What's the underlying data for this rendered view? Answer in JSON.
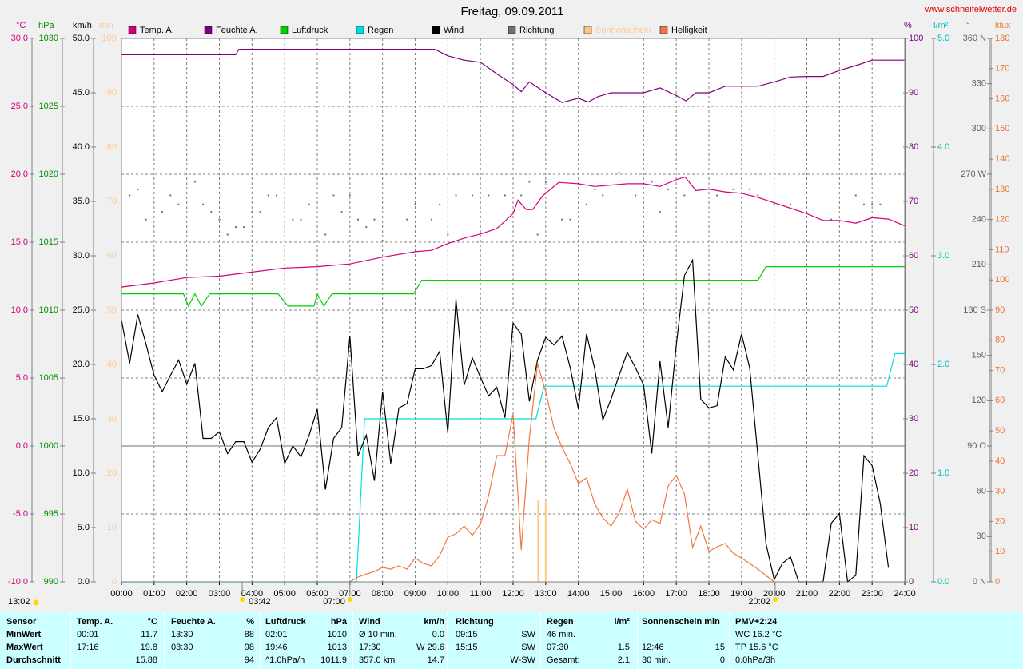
{
  "chart_data": {
    "type": "multi-axis-line",
    "title": "Freitag, 09.09.2011",
    "source": "www.schneifelwetter.de",
    "grid": true,
    "xlim": [
      0,
      24
    ],
    "xticks": [
      {
        "value": 0,
        "label": "00:00"
      },
      {
        "value": 1,
        "label": "01:00"
      },
      {
        "value": 2,
        "label": "02:00"
      },
      {
        "value": 3,
        "label": "03:00"
      },
      {
        "value": 4,
        "label": "04:00"
      },
      {
        "value": 5,
        "label": "05:00"
      },
      {
        "value": 6,
        "label": "06:00"
      },
      {
        "value": 7,
        "label": "07:00"
      },
      {
        "value": 8,
        "label": "08:00"
      },
      {
        "value": 9,
        "label": "09:00"
      },
      {
        "value": 10,
        "label": "10:00"
      },
      {
        "value": 11,
        "label": "11:00"
      },
      {
        "value": 12,
        "label": "12:00"
      },
      {
        "value": 13,
        "label": "13:00"
      },
      {
        "value": 14,
        "label": "14:00"
      },
      {
        "value": 15,
        "label": "15:00"
      },
      {
        "value": 16,
        "label": "16:00"
      },
      {
        "value": 17,
        "label": "17:00"
      },
      {
        "value": 18,
        "label": "18:00"
      },
      {
        "value": 19,
        "label": "19:00"
      },
      {
        "value": 20,
        "label": "20:00"
      },
      {
        "value": 21,
        "label": "21:00"
      },
      {
        "value": 22,
        "label": "22:00"
      },
      {
        "value": 23,
        "label": "23:00"
      },
      {
        "value": 24,
        "label": "24:00"
      }
    ],
    "corner_label": "13:02",
    "annotations": [
      {
        "x": 3.7,
        "label": "03:42",
        "kind": "moon"
      },
      {
        "x": 7.0,
        "label": "07:00",
        "kind": "sun"
      },
      {
        "x": 20.03,
        "label": "20:02",
        "kind": "sun"
      }
    ],
    "series": [
      {
        "name": "Temp. A.",
        "unit": "°C",
        "mark": "line",
        "color": "#d4007a",
        "axis_color": "#d0007f",
        "ylim": [
          -10,
          30
        ],
        "yticks": [
          {
            "value": 30,
            "label": "30.0"
          },
          {
            "value": 25,
            "label": "25.0"
          },
          {
            "value": 20,
            "label": "20.0"
          },
          {
            "value": 15,
            "label": "15.0"
          },
          {
            "value": 10,
            "label": "10.0"
          },
          {
            "value": 5,
            "label": "5.0"
          },
          {
            "value": 0,
            "label": "0.0"
          },
          {
            "value": -5,
            "label": "-5.0"
          },
          {
            "value": -10,
            "label": "-10.0"
          }
        ],
        "x": [
          0,
          1,
          2,
          3,
          4,
          5,
          6,
          7,
          8,
          9,
          9.5,
          10,
          10.5,
          11,
          11.5,
          12,
          12.15,
          12.4,
          12.6,
          12.9,
          13.1,
          13.4,
          14,
          14.5,
          15,
          15.5,
          16,
          16.5,
          17,
          17.27,
          17.6,
          18,
          18.5,
          19,
          19.5,
          20,
          20.5,
          21,
          21.5,
          22,
          22.5,
          23,
          23.5,
          24
        ],
        "values": [
          11.7,
          12.0,
          12.4,
          12.5,
          12.8,
          13.1,
          13.2,
          13.4,
          13.9,
          14.3,
          14.4,
          14.9,
          15.3,
          15.6,
          16.0,
          17.1,
          18.1,
          17.4,
          17.4,
          18.4,
          18.8,
          19.4,
          19.3,
          19.1,
          19.2,
          19.3,
          19.3,
          19.1,
          19.6,
          19.8,
          18.8,
          18.9,
          18.7,
          18.6,
          18.3,
          17.9,
          17.5,
          17.1,
          16.6,
          16.6,
          16.4,
          16.8,
          16.7,
          16.2
        ]
      },
      {
        "name": "Feuchte A.",
        "unit": "%",
        "mark": "line",
        "color": "#800080",
        "axis_color": "#800080",
        "ylim": [
          0,
          100
        ],
        "yticks": [
          100,
          90,
          80,
          70,
          60,
          50,
          40,
          30,
          20,
          10,
          0
        ],
        "x": [
          0,
          3.5,
          3.6,
          9.6,
          10,
          10.5,
          11,
          11.5,
          12,
          12.25,
          12.5,
          13,
          13.5,
          14,
          14.3,
          14.6,
          15,
          16,
          16.5,
          17,
          17.3,
          17.6,
          18,
          18.5,
          19,
          19.5,
          20,
          20.5,
          21,
          21.5,
          22,
          22.5,
          23,
          24
        ],
        "values": [
          97,
          97,
          98,
          98,
          96.8,
          96,
          95.6,
          93.5,
          91.5,
          90.2,
          92,
          90,
          88.2,
          89,
          88.3,
          89.3,
          90,
          90,
          90.9,
          89.5,
          88.5,
          90,
          90,
          91.2,
          91.2,
          91.2,
          92,
          92.9,
          93,
          93,
          94.1,
          95,
          96,
          96
        ]
      },
      {
        "name": "Luftdruck",
        "unit": "hPa",
        "mark": "line",
        "color": "#00d000",
        "axis_color": "#009000",
        "ylim": [
          990,
          1030
        ],
        "yticks": [
          1030,
          1025,
          1020,
          1015,
          1010,
          1005,
          1000,
          995,
          990
        ],
        "x": [
          0,
          1.9,
          2.05,
          2.25,
          2.45,
          2.7,
          4.8,
          5.1,
          5.9,
          6.0,
          6.2,
          6.45,
          8.95,
          9.2,
          19.5,
          19.75,
          24
        ],
        "values": [
          1011.2,
          1011.2,
          1010.3,
          1011.2,
          1010.3,
          1011.2,
          1011.2,
          1010.3,
          1010.3,
          1011.2,
          1010.3,
          1011.2,
          1011.2,
          1012.2,
          1012.2,
          1013.2,
          1013.2
        ]
      },
      {
        "name": "Regen",
        "unit": "l/m²",
        "mark": "line",
        "color": "#00e0e0",
        "axis_color": "#00c0c0",
        "ylim": [
          0,
          5
        ],
        "yticks": [
          {
            "value": 5,
            "label": "5.0"
          },
          {
            "value": 4,
            "label": "4.0"
          },
          {
            "value": 3,
            "label": "3.0"
          },
          {
            "value": 2,
            "label": "2.0"
          },
          {
            "value": 1,
            "label": "1.0"
          },
          {
            "value": 0,
            "label": "0.0"
          }
        ],
        "x": [
          0,
          7.2,
          7.45,
          12.7,
          12.95,
          23.45,
          23.7,
          24
        ],
        "values": [
          0,
          0,
          1.5,
          1.5,
          1.8,
          1.8,
          2.1,
          2.1
        ]
      },
      {
        "name": "Wind",
        "unit": "km/h",
        "mark": "line",
        "color": "#000000",
        "axis_color": "#000000",
        "ylim": [
          0,
          50
        ],
        "yticks": [
          {
            "value": 50,
            "label": "50.0"
          },
          {
            "value": 45,
            "label": "45.0"
          },
          {
            "value": 40,
            "label": "40.0"
          },
          {
            "value": 35,
            "label": "35.0"
          },
          {
            "value": 30,
            "label": "30.0"
          },
          {
            "value": 25,
            "label": "25.0"
          },
          {
            "value": 20,
            "label": "20.0"
          },
          {
            "value": 15,
            "label": "15.0"
          },
          {
            "value": 10,
            "label": "10.0"
          },
          {
            "value": 5,
            "label": "5.0"
          },
          {
            "value": 0,
            "label": "0.0"
          }
        ],
        "x": [
          0,
          0.25,
          0.5,
          0.75,
          1,
          1.25,
          1.5,
          1.75,
          2,
          2.25,
          2.5,
          2.75,
          3,
          3.25,
          3.5,
          3.75,
          4,
          4.25,
          4.5,
          4.75,
          5,
          5.25,
          5.5,
          5.75,
          6,
          6.25,
          6.5,
          6.75,
          7,
          7.25,
          7.5,
          7.75,
          8,
          8.25,
          8.5,
          8.75,
          9,
          9.25,
          9.5,
          9.75,
          10,
          10.25,
          10.5,
          10.75,
          11,
          11.25,
          11.5,
          11.75,
          12,
          12.25,
          12.5,
          12.75,
          13,
          13.25,
          13.5,
          13.75,
          14,
          14.25,
          14.5,
          14.75,
          15,
          15.25,
          15.5,
          15.75,
          16,
          16.25,
          16.5,
          16.75,
          17,
          17.25,
          17.5,
          17.75,
          18,
          18.25,
          18.5,
          18.75,
          19,
          19.25,
          19.5,
          19.75,
          20,
          20.25,
          20.5,
          20.75,
          21,
          21.25,
          21.5,
          21.75,
          22,
          22.25,
          22.5,
          22.75,
          23,
          23.25,
          23.5
        ],
        "values": [
          24.1,
          20.1,
          24.6,
          21.9,
          19.0,
          17.5,
          19.0,
          20.4,
          18.2,
          20.1,
          13.2,
          13.2,
          13.8,
          11.8,
          12.9,
          12.9,
          11.0,
          12.2,
          14.2,
          15.1,
          10.9,
          12.5,
          11.5,
          13.5,
          15.9,
          8.5,
          13.2,
          14.2,
          22.6,
          11.6,
          13.5,
          9.3,
          17.5,
          10.9,
          16.0,
          16.4,
          19.6,
          19.6,
          19.9,
          21.2,
          13.7,
          26.0,
          18.1,
          20.6,
          18.8,
          17.1,
          17.9,
          15.1,
          23.8,
          22.8,
          16.6,
          20.4,
          22.5,
          21.8,
          22.6,
          19.7,
          15.9,
          22.8,
          19.6,
          14.9,
          16.8,
          19.0,
          21.1,
          19.7,
          18.1,
          11.8,
          20.3,
          14.2,
          21.8,
          28.2,
          29.6,
          16.8,
          16.0,
          16.2,
          20.7,
          19.5,
          22.8,
          19.7,
          11.6,
          3.5,
          0.2,
          1.7,
          2.3,
          0,
          0,
          0,
          0,
          5.4,
          6.3,
          0,
          0.6,
          11.6,
          10.7,
          7.2,
          1.3
        ]
      },
      {
        "name": "Richtung",
        "unit": "°",
        "mark": "dots",
        "color": "#707070",
        "axis_color": "#606060",
        "ylim": [
          0,
          360
        ],
        "yticks": [
          {
            "value": 360,
            "label": "360 N"
          },
          330,
          300,
          {
            "value": 270,
            "label": "270 W"
          },
          240,
          210,
          {
            "value": 180,
            "label": "180 S"
          },
          150,
          120,
          {
            "value": 90,
            "label": "90 O"
          },
          60,
          30,
          {
            "value": 0,
            "label": "0 N"
          }
        ],
        "x": [
          0.25,
          0.5,
          0.75,
          1.25,
          1.5,
          1.75,
          2.25,
          2.5,
          2.75,
          3,
          3.25,
          3.5,
          3.75,
          4,
          4.25,
          4.5,
          4.75,
          5.25,
          5.5,
          5.75,
          6.25,
          6.5,
          6.75,
          7,
          7.25,
          7.5,
          7.75,
          8,
          8.75,
          9,
          9.5,
          9.75,
          10,
          10.25,
          10.75,
          11.25,
          11.75,
          12.25,
          12.5,
          12.75,
          13,
          13.5,
          13.75,
          14.25,
          14.5,
          14.75,
          15.25,
          15.75,
          16.25,
          16.5,
          16.75,
          17.25,
          17.75,
          18.25,
          18.75,
          19.25,
          19.5,
          20,
          20.5,
          21.75,
          22.5,
          22.75,
          23,
          23.25
        ],
        "values": [
          256,
          260,
          240,
          245,
          256,
          250,
          265,
          250,
          245,
          240,
          230,
          235,
          235,
          245,
          245,
          256,
          256,
          240,
          240,
          250,
          230,
          256,
          245,
          256,
          240,
          235,
          240,
          226,
          240,
          250,
          240,
          250,
          230,
          256,
          256,
          256,
          256,
          256,
          265,
          230,
          265,
          240,
          240,
          250,
          260,
          256,
          271,
          256,
          265,
          245,
          260,
          256,
          260,
          256,
          260,
          260,
          256,
          250,
          250,
          240,
          256,
          250,
          250,
          250
        ]
      },
      {
        "name": "Sonnenschein",
        "unit": "min",
        "mark": "bars",
        "color": "#ffc880",
        "axis_color": "#ffc890",
        "ylim": [
          0,
          100
        ],
        "yticks": [
          100,
          90,
          80,
          70,
          60,
          50,
          40,
          30,
          20,
          10,
          0
        ],
        "x": [
          12.77,
          13.0
        ],
        "values": [
          15,
          15
        ]
      },
      {
        "name": "Helligkeit",
        "unit": "klux",
        "mark": "line",
        "color": "#f07840",
        "axis_color": "#f07030",
        "ylim": [
          0,
          180
        ],
        "yticks": [
          180,
          170,
          160,
          150,
          140,
          130,
          120,
          110,
          100,
          90,
          80,
          70,
          60,
          50,
          40,
          30,
          20,
          10,
          0
        ],
        "x": [
          7,
          7.25,
          7.5,
          7.75,
          8,
          8.25,
          8.5,
          8.75,
          9,
          9.25,
          9.5,
          9.75,
          10,
          10.25,
          10.5,
          10.75,
          11,
          11.25,
          11.5,
          11.75,
          12,
          12.25,
          12.5,
          12.75,
          13,
          13.25,
          13.5,
          13.75,
          14,
          14.25,
          14.5,
          14.75,
          15,
          15.25,
          15.5,
          15.75,
          16,
          16.25,
          16.5,
          16.75,
          17,
          17.25,
          17.5,
          17.75,
          18,
          18.25,
          18.5,
          18.75,
          19,
          19.25,
          19.5,
          19.75,
          20
        ],
        "values": [
          0,
          1.6,
          2.6,
          3.4,
          4.8,
          4.2,
          5.3,
          4.2,
          7.9,
          6.1,
          5.3,
          8.7,
          14.8,
          15.9,
          18.5,
          15.4,
          19.3,
          28.6,
          41.8,
          41.8,
          55.6,
          10.6,
          47.6,
          72.3,
          63.0,
          51.1,
          44.5,
          39.2,
          32.6,
          34.4,
          25.9,
          21.2,
          18.5,
          22.8,
          30.7,
          20.1,
          17.5,
          20.6,
          19.3,
          31.8,
          35.2,
          29.1,
          11.4,
          18.5,
          10.1,
          11.6,
          12.7,
          9.5,
          7.9,
          6.1,
          4.2,
          2.1,
          0
        ]
      }
    ]
  },
  "stats": {
    "rows": [
      [
        "Sensor",
        "Temp. A.",
        "°C",
        "Feuchte A.",
        "%",
        "Luftdruck",
        "hPa",
        "Wind",
        "km/h",
        "Richtung",
        null,
        "Regen",
        "l/m²",
        "Sonnenschein min",
        null,
        "PMV+2:24"
      ],
      [
        "MinWert",
        "00:01",
        "11.7",
        "13:30",
        "88",
        "02:01",
        "1010",
        "Ø 10 min.",
        "0.0",
        "09:15",
        "SW",
        "46 min.",
        null,
        null,
        null,
        "WC 16.2 °C"
      ],
      [
        "MaxWert",
        "17:16",
        "19.8",
        "03:30",
        "98",
        "19:46",
        "1013",
        "17:30",
        "W 29.6",
        "15:15",
        "SW",
        "07:30",
        "1.5",
        "12:46",
        "15",
        "TP 15.6 °C"
      ],
      [
        "Durchschnitt",
        null,
        "15.88",
        null,
        "94",
        "^1.0hPa/h",
        "1011.9",
        "357.0 km",
        "14.7",
        null,
        "W-SW",
        "Gesamt:",
        "2.1",
        "30 min.",
        "0",
        "0.0hPa/3h"
      ]
    ]
  }
}
